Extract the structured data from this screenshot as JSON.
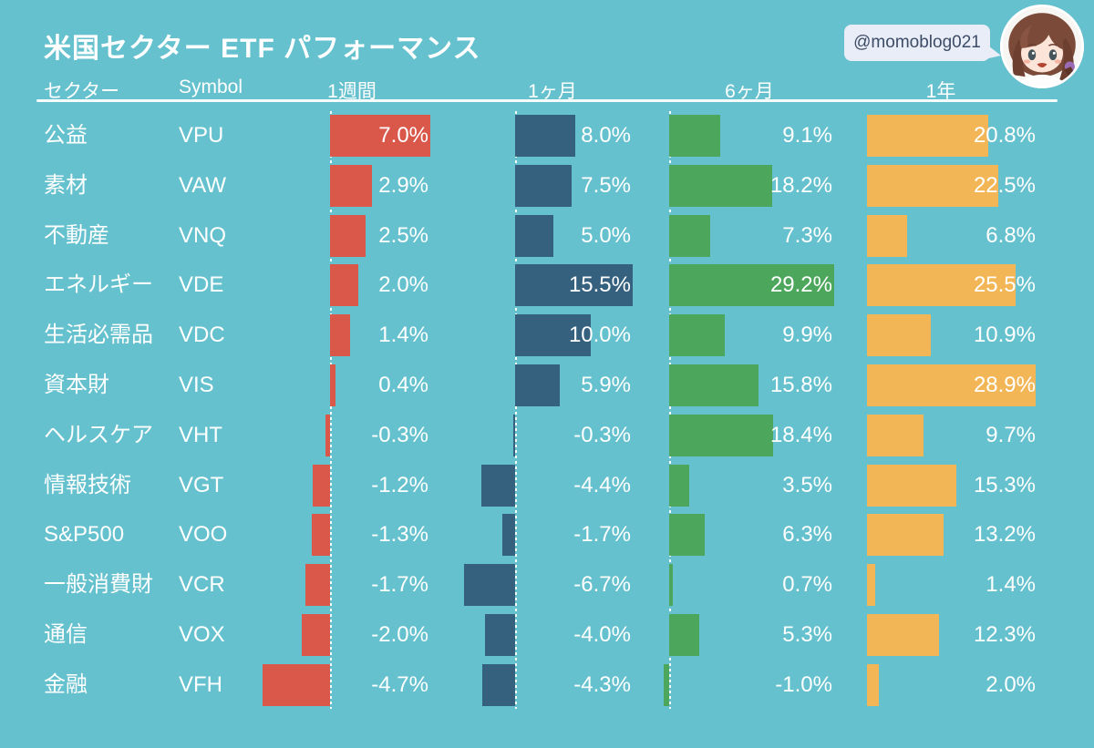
{
  "page": {
    "background": "#65c1ce",
    "text_color": "#ffffff"
  },
  "header": {
    "title": "米国セクター ETF パフォーマンス",
    "handle": "@momoblog021",
    "avatar": "anime-girl-avatar",
    "bubble_color": "#e9edf7",
    "bubble_text_color": "#3d4c66"
  },
  "table_headers": {
    "sector": "セクター",
    "symbol": "Symbol",
    "w1": "1週間",
    "m1": "1ヶ月",
    "m6": "6ヶ月",
    "y1": "1年"
  },
  "periods": [
    {
      "key": "w1",
      "label": "1週間",
      "color": "#d9584a"
    },
    {
      "key": "m1",
      "label": "1ヶ月",
      "color": "#35617f"
    },
    {
      "key": "m6",
      "label": "6ヶ月",
      "color": "#4ca65c"
    },
    {
      "key": "y1",
      "label": "1年",
      "color": "#f2b656"
    }
  ],
  "rows": [
    {
      "sector": "公益",
      "symbol": "VPU",
      "values": {
        "w1": "7.0%",
        "m1": "8.0%",
        "m6": "9.1%",
        "y1": "20.8%"
      }
    },
    {
      "sector": "素材",
      "symbol": "VAW",
      "values": {
        "w1": "2.9%",
        "m1": "7.5%",
        "m6": "18.2%",
        "y1": "22.5%"
      }
    },
    {
      "sector": "不動産",
      "symbol": "VNQ",
      "values": {
        "w1": "2.5%",
        "m1": "5.0%",
        "m6": "7.3%",
        "y1": "6.8%"
      }
    },
    {
      "sector": "エネルギー",
      "symbol": "VDE",
      "values": {
        "w1": "2.0%",
        "m1": "15.5%",
        "m6": "29.2%",
        "y1": "25.5%"
      }
    },
    {
      "sector": "生活必需品",
      "symbol": "VDC",
      "values": {
        "w1": "1.4%",
        "m1": "10.0%",
        "m6": "9.9%",
        "y1": "10.9%"
      }
    },
    {
      "sector": "資本財",
      "symbol": "VIS",
      "values": {
        "w1": "0.4%",
        "m1": "5.9%",
        "m6": "15.8%",
        "y1": "28.9%"
      }
    },
    {
      "sector": "ヘルスケア",
      "symbol": "VHT",
      "values": {
        "w1": "-0.3%",
        "m1": "-0.3%",
        "m6": "18.4%",
        "y1": "9.7%"
      }
    },
    {
      "sector": "情報技術",
      "symbol": "VGT",
      "values": {
        "w1": "-1.2%",
        "m1": "-4.4%",
        "m6": "3.5%",
        "y1": "15.3%"
      }
    },
    {
      "sector": "S&P500",
      "symbol": "VOO",
      "values": {
        "w1": "-1.3%",
        "m1": "-1.7%",
        "m6": "6.3%",
        "y1": "13.2%"
      }
    },
    {
      "sector": "一般消費財",
      "symbol": "VCR",
      "values": {
        "w1": "-1.7%",
        "m1": "-6.7%",
        "m6": "0.7%",
        "y1": "1.4%"
      }
    },
    {
      "sector": "通信",
      "symbol": "VOX",
      "values": {
        "w1": "-2.0%",
        "m1": "-4.0%",
        "m6": "5.3%",
        "y1": "12.3%"
      }
    },
    {
      "sector": "金融",
      "symbol": "VFH",
      "values": {
        "w1": "-4.7%",
        "m1": "-4.3%",
        "m6": "-1.0%",
        "y1": "2.0%"
      }
    }
  ],
  "chart_data": {
    "type": "bar",
    "orientation": "horizontal",
    "title": "米国セクター ETF パフォーマンス",
    "categories": [
      "公益",
      "素材",
      "不動産",
      "エネルギー",
      "生活必需品",
      "資本財",
      "ヘルスケア",
      "情報技術",
      "S&P500",
      "一般消費財",
      "通信",
      "金融"
    ],
    "symbols": [
      "VPU",
      "VAW",
      "VNQ",
      "VDE",
      "VDC",
      "VIS",
      "VHT",
      "VGT",
      "VOO",
      "VCR",
      "VOX",
      "VFH"
    ],
    "series": [
      {
        "name": "1週間",
        "color": "#d9584a",
        "values": [
          7.0,
          2.9,
          2.5,
          2.0,
          1.4,
          0.4,
          -0.3,
          -1.2,
          -1.3,
          -1.7,
          -2.0,
          -4.7
        ]
      },
      {
        "name": "1ヶ月",
        "color": "#35617f",
        "values": [
          8.0,
          7.5,
          5.0,
          15.5,
          10.0,
          5.9,
          -0.3,
          -4.4,
          -1.7,
          -6.7,
          -4.0,
          -4.3
        ]
      },
      {
        "name": "6ヶ月",
        "color": "#4ca65c",
        "values": [
          9.1,
          18.2,
          7.3,
          29.2,
          9.9,
          15.8,
          18.4,
          3.5,
          6.3,
          0.7,
          5.3,
          -1.0
        ]
      },
      {
        "name": "1年",
        "color": "#f2b656",
        "values": [
          20.8,
          22.5,
          6.8,
          25.5,
          10.9,
          28.9,
          9.7,
          15.3,
          13.2,
          1.4,
          12.3,
          2.0
        ]
      }
    ],
    "value_format": "percent_one_decimal",
    "baseline": 0,
    "grid": false,
    "legend_position": "column-headers"
  }
}
